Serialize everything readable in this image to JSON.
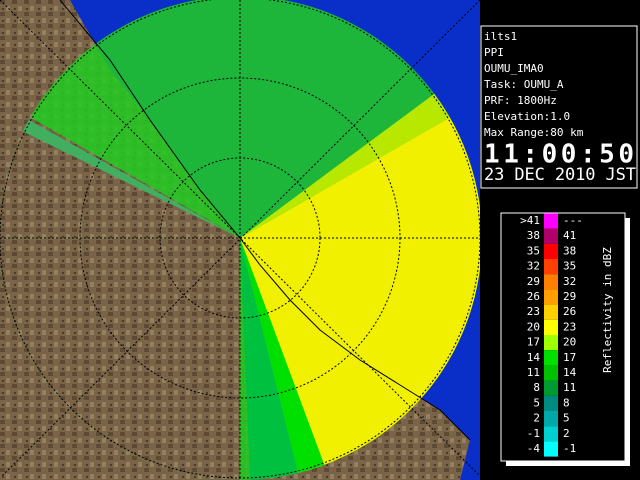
{
  "info_panel": {
    "lines": [
      "ilts1",
      "PPI",
      "OUMU_IMA0",
      "Task: OUMU_A",
      "PRF: 1800Hz",
      "Elevation:1.0",
      "Max Range:80 km"
    ],
    "time": "11:00:50",
    "date": "23 DEC 2010 JST"
  },
  "legend": {
    "title": "Reflectivity in dBZ",
    "rows": [
      {
        "low": ">41",
        "high": "---",
        "color": "#ff00ff"
      },
      {
        "low": "38",
        "high": "41",
        "color": "#b0006a"
      },
      {
        "low": "35",
        "high": "38",
        "color": "#ff0000"
      },
      {
        "low": "32",
        "high": "35",
        "color": "#ff4000"
      },
      {
        "low": "29",
        "high": "32",
        "color": "#ff8000"
      },
      {
        "low": "26",
        "high": "29",
        "color": "#ffa000"
      },
      {
        "low": "23",
        "high": "26",
        "color": "#ffd000"
      },
      {
        "low": "20",
        "high": "23",
        "color": "#ffff00"
      },
      {
        "low": "17",
        "high": "20",
        "color": "#a0ff00"
      },
      {
        "low": "14",
        "high": "17",
        "color": "#00e000"
      },
      {
        "low": "11",
        "high": "14",
        "color": "#00c000"
      },
      {
        "low": "8",
        "high": "11",
        "color": "#009a30"
      },
      {
        "low": "5",
        "high": "8",
        "color": "#008a80"
      },
      {
        "low": "2",
        "high": "5",
        "color": "#00a8a8"
      },
      {
        "low": "-1",
        "high": "2",
        "color": "#00d0d0"
      },
      {
        "low": "-4",
        "high": "-1",
        "color": "#00ffff"
      }
    ]
  }
}
